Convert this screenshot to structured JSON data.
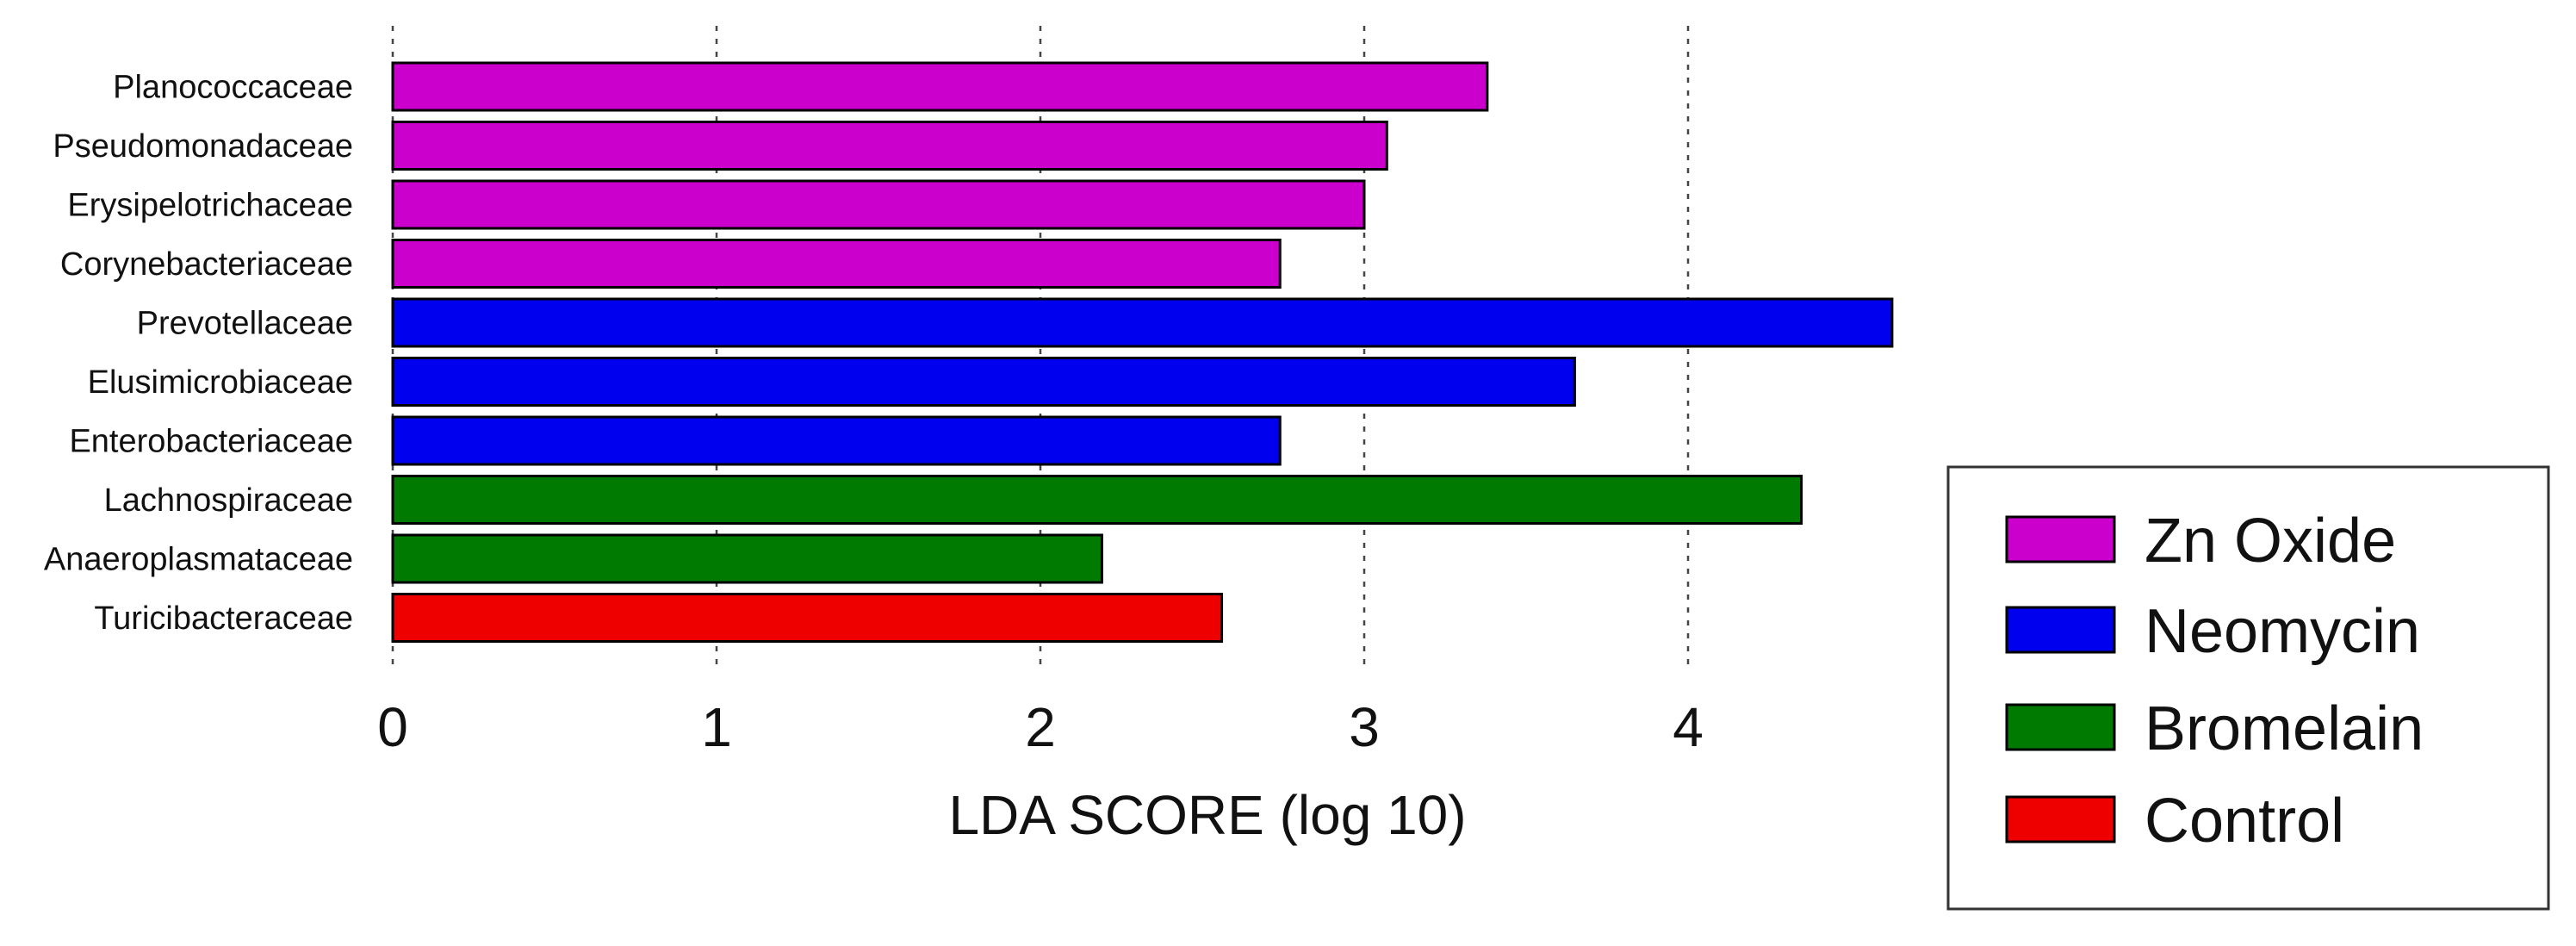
{
  "chart_data": {
    "type": "bar",
    "orientation": "horizontal",
    "categories": [
      "Planococcaceae",
      "Pseudomonadaceae",
      "Erysipelotrichaceae",
      "Corynebacteriaceae",
      "Prevotellaceae",
      "Elusimicrobiaceae",
      "Enterobacteriaceae",
      "Lachnospiraceae",
      "Anaeroplasmataceae",
      "Turicibacteraceae"
    ],
    "values": [
      3.38,
      3.07,
      3.0,
      2.74,
      4.63,
      3.65,
      2.74,
      4.35,
      2.19,
      2.56
    ],
    "groups": [
      "Zn Oxide",
      "Zn Oxide",
      "Zn Oxide",
      "Zn Oxide",
      "Neomycin",
      "Neomycin",
      "Neomycin",
      "Bromelain",
      "Bromelain",
      "Control"
    ],
    "xlabel": "LDA SCORE (log 10)",
    "xticks": [
      "0",
      "1",
      "2",
      "3",
      "4"
    ],
    "xlim": [
      0,
      4.7
    ],
    "grid": "vertical dotted lines at x ticks",
    "legend": {
      "placement": "bottom-right",
      "entries": [
        {
          "name": "Zn Oxide",
          "color": "#cc00cc"
        },
        {
          "name": "Neomycin",
          "color": "#0000ee"
        },
        {
          "name": "Bromelain",
          "color": "#007a00"
        },
        {
          "name": "Control",
          "color": "#ee0000"
        }
      ]
    }
  }
}
